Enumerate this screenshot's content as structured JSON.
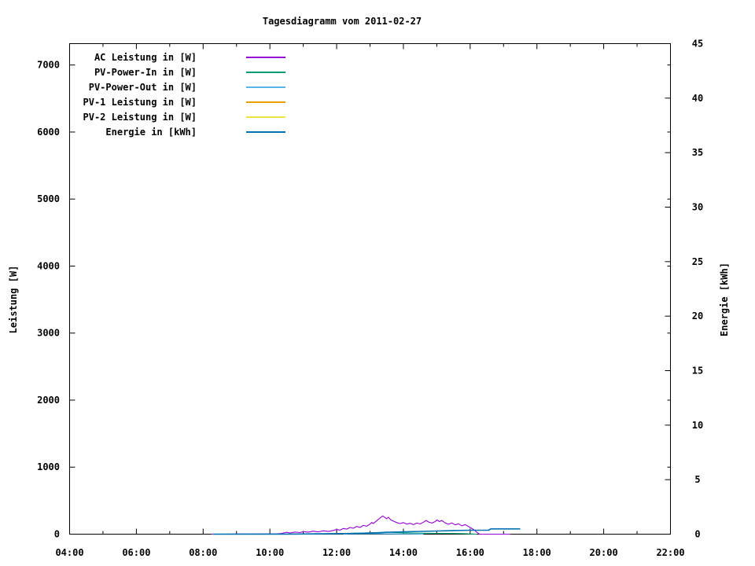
{
  "chart_data": {
    "type": "line",
    "title": "Tagesdiagramm vom 2011-02-27",
    "legend_position": "top-left",
    "grid": false,
    "x_axis": {
      "unit": "time",
      "range_hours": [
        4,
        22
      ],
      "major_tick_labels": [
        "04:00",
        "06:00",
        "08:00",
        "10:00",
        "12:00",
        "14:00",
        "16:00",
        "18:00",
        "20:00",
        "22:00"
      ],
      "major_tick_hours": [
        4,
        6,
        8,
        10,
        12,
        14,
        16,
        18,
        20,
        22
      ],
      "minor_tick_hours": [
        5,
        7,
        9,
        11,
        13,
        15,
        17,
        19,
        21
      ]
    },
    "y_left": {
      "label": "Leistung [W]",
      "ticks": [
        0,
        1000,
        2000,
        3000,
        4000,
        5000,
        6000,
        7000
      ],
      "range": [
        0,
        7325
      ]
    },
    "y_right": {
      "label": "Energie [kWh]",
      "ticks": [
        0,
        5,
        10,
        15,
        20,
        25,
        30,
        35,
        40,
        45
      ],
      "range": [
        0,
        45
      ]
    },
    "series": [
      {
        "name": "AC Leistung in [W]",
        "color": "#9400D3",
        "axis": "left",
        "width": 1.1,
        "points": [
          [
            8.25,
            0
          ],
          [
            8.6,
            0
          ],
          [
            9.0,
            2
          ],
          [
            9.4,
            2
          ],
          [
            9.8,
            3
          ],
          [
            10.2,
            4
          ],
          [
            10.35,
            12
          ],
          [
            10.5,
            28
          ],
          [
            10.6,
            18
          ],
          [
            10.75,
            32
          ],
          [
            10.9,
            24
          ],
          [
            11.0,
            38
          ],
          [
            11.15,
            30
          ],
          [
            11.3,
            45
          ],
          [
            11.45,
            34
          ],
          [
            11.6,
            50
          ],
          [
            11.75,
            40
          ],
          [
            11.9,
            55
          ],
          [
            12.0,
            70
          ],
          [
            12.1,
            60
          ],
          [
            12.2,
            85
          ],
          [
            12.3,
            75
          ],
          [
            12.4,
            100
          ],
          [
            12.5,
            88
          ],
          [
            12.6,
            115
          ],
          [
            12.7,
            100
          ],
          [
            12.8,
            130
          ],
          [
            12.9,
            118
          ],
          [
            13.0,
            150
          ],
          [
            13.05,
            175
          ],
          [
            13.1,
            160
          ],
          [
            13.2,
            200
          ],
          [
            13.3,
            240
          ],
          [
            13.38,
            272
          ],
          [
            13.45,
            248
          ],
          [
            13.5,
            230
          ],
          [
            13.55,
            252
          ],
          [
            13.62,
            215
          ],
          [
            13.7,
            195
          ],
          [
            13.8,
            172
          ],
          [
            13.9,
            158
          ],
          [
            14.0,
            172
          ],
          [
            14.1,
            150
          ],
          [
            14.2,
            162
          ],
          [
            14.3,
            142
          ],
          [
            14.4,
            165
          ],
          [
            14.5,
            152
          ],
          [
            14.6,
            178
          ],
          [
            14.68,
            205
          ],
          [
            14.75,
            182
          ],
          [
            14.85,
            165
          ],
          [
            14.95,
            188
          ],
          [
            15.0,
            212
          ],
          [
            15.08,
            188
          ],
          [
            15.15,
            205
          ],
          [
            15.25,
            168
          ],
          [
            15.35,
            148
          ],
          [
            15.45,
            168
          ],
          [
            15.55,
            138
          ],
          [
            15.65,
            155
          ],
          [
            15.75,
            125
          ],
          [
            15.85,
            142
          ],
          [
            15.95,
            115
          ],
          [
            16.0,
            100
          ],
          [
            16.1,
            70
          ],
          [
            16.2,
            30
          ],
          [
            16.28,
            0
          ],
          [
            17.2,
            0
          ]
        ]
      },
      {
        "name": "PV-Power-In in [W]",
        "color": "#009E73",
        "axis": "left",
        "width": 1.1,
        "points": [
          [
            12.3,
            0
          ],
          [
            12.4,
            12
          ],
          [
            12.8,
            18
          ],
          [
            13.2,
            25
          ],
          [
            13.5,
            30
          ],
          [
            13.8,
            22
          ],
          [
            14.2,
            18
          ],
          [
            14.6,
            14
          ],
          [
            15.0,
            12
          ],
          [
            15.4,
            10
          ],
          [
            15.8,
            8
          ],
          [
            16.0,
            4
          ],
          [
            16.2,
            0
          ]
        ]
      },
      {
        "name": "PV-Power-Out in [W]",
        "color": "#56B4E9",
        "axis": "left",
        "width": 1.1,
        "points": [
          [
            12.2,
            0
          ],
          [
            12.4,
            4
          ],
          [
            13.0,
            6
          ],
          [
            13.6,
            5
          ],
          [
            14.2,
            4
          ],
          [
            14.45,
            2
          ],
          [
            14.6,
            0
          ]
        ]
      },
      {
        "name": "PV-1 Leistung in [W]",
        "color": "#E69F00",
        "axis": "left",
        "width": 1.1,
        "points": []
      },
      {
        "name": "PV-2 Leistung in [W]",
        "color": "#F0E442",
        "axis": "left",
        "width": 1.1,
        "points": []
      },
      {
        "name": "Energie in [kWh]",
        "color": "#0072B2",
        "axis": "right",
        "width": 1.6,
        "points": [
          [
            8.3,
            0
          ],
          [
            10.5,
            0.01
          ],
          [
            11.5,
            0.03
          ],
          [
            12.2,
            0.05
          ],
          [
            12.8,
            0.09
          ],
          [
            13.3,
            0.13
          ],
          [
            13.5,
            0.17
          ],
          [
            14.0,
            0.21
          ],
          [
            14.5,
            0.25
          ],
          [
            15.0,
            0.29
          ],
          [
            15.5,
            0.33
          ],
          [
            16.0,
            0.36
          ],
          [
            16.55,
            0.36
          ],
          [
            16.62,
            0.48
          ],
          [
            17.5,
            0.48
          ]
        ]
      }
    ]
  }
}
